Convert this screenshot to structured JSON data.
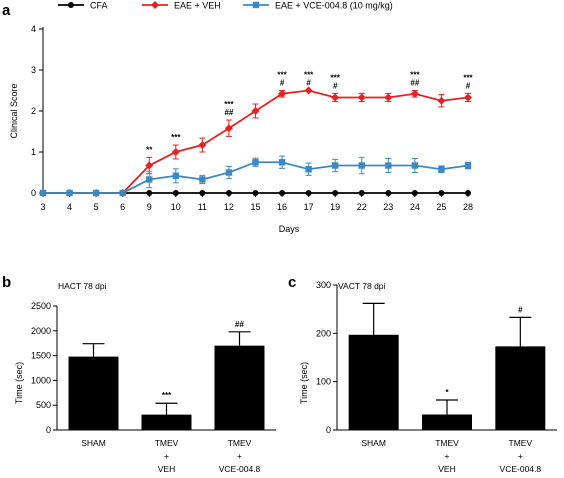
{
  "chart_data": [
    {
      "type": "line",
      "panel_label": "a",
      "xlabel": "Days",
      "ylabel": "Clinical Score",
      "ylim": [
        0,
        4
      ],
      "yticks": [
        0,
        1,
        2,
        3,
        4
      ],
      "categories": [
        "3",
        "4",
        "5",
        "6",
        "9",
        "10",
        "11",
        "12",
        "15",
        "16",
        "17",
        "19",
        "22",
        "23",
        "24",
        "25",
        "28"
      ],
      "legend_position": "top",
      "grid": false,
      "series": [
        {
          "name": "CFA",
          "color": "#000000",
          "marker": "circle",
          "values": [
            0,
            0,
            0,
            0,
            0,
            0,
            0,
            0,
            0,
            0,
            0,
            0,
            0,
            0,
            0,
            0,
            0
          ],
          "errors": [
            0,
            0,
            0,
            0,
            0,
            0,
            0,
            0,
            0,
            0,
            0,
            0,
            0,
            0,
            0,
            0,
            0
          ]
        },
        {
          "name": "EAE + VEH",
          "color": "#e8201f",
          "marker": "diamond",
          "values": [
            0,
            0,
            0,
            0,
            0.67,
            1.0,
            1.17,
            1.58,
            2.0,
            2.42,
            2.5,
            2.33,
            2.33,
            2.33,
            2.42,
            2.25,
            2.33
          ],
          "errors": [
            0,
            0,
            0,
            0,
            0.2,
            0.17,
            0.17,
            0.2,
            0.17,
            0.08,
            0,
            0.1,
            0.1,
            0.1,
            0.08,
            0.15,
            0.1
          ]
        },
        {
          "name": "EAE + VCE-004.8 (10 mg/kg)",
          "color": "#3b88c4",
          "marker": "square",
          "values": [
            0,
            0,
            0,
            0,
            0.33,
            0.42,
            0.33,
            0.5,
            0.75,
            0.75,
            0.58,
            0.67,
            0.67,
            0.67,
            0.67,
            0.58,
            0.67
          ],
          "errors": [
            0,
            0,
            0,
            0,
            0.2,
            0.17,
            0.1,
            0.15,
            0.1,
            0.15,
            0.15,
            0.15,
            0.2,
            0.17,
            0.17,
            0.08,
            0.08
          ]
        }
      ],
      "annotations": [
        {
          "x": "9",
          "lines": [
            "**"
          ]
        },
        {
          "x": "10",
          "lines": [
            "***"
          ]
        },
        {
          "x": "12",
          "lines": [
            "***",
            "##"
          ]
        },
        {
          "x": "16",
          "lines": [
            "***",
            "#"
          ]
        },
        {
          "x": "17",
          "lines": [
            "***",
            "#"
          ]
        },
        {
          "x": "19",
          "lines": [
            "***",
            "#"
          ]
        },
        {
          "x": "24",
          "lines": [
            "***",
            "##"
          ]
        },
        {
          "x": "28",
          "lines": [
            "***",
            "#"
          ]
        }
      ]
    },
    {
      "type": "bar",
      "panel_label": "b",
      "title": "HACT 78 dpi",
      "ylabel": "Time (sec)",
      "ylim": [
        0,
        2500
      ],
      "yticks": [
        0,
        500,
        1000,
        1500,
        2000,
        2500
      ],
      "categories": [
        [
          "SHAM"
        ],
        [
          "TMEV",
          "+",
          "VEH"
        ],
        [
          "TMEV",
          "+",
          "VCE-004.8"
        ]
      ],
      "values": [
        1480,
        310,
        1700
      ],
      "errors": [
        260,
        230,
        280
      ],
      "annotations": [
        "",
        "***",
        "##"
      ],
      "bar_color": "#000000"
    },
    {
      "type": "bar",
      "panel_label": "c",
      "title": "VACT 78 dpi",
      "ylabel": "Time (sec)",
      "ylim": [
        0,
        300
      ],
      "yticks": [
        0,
        100,
        200,
        300
      ],
      "categories": [
        [
          "SHAM"
        ],
        [
          "TMEV",
          "+",
          "VEH"
        ],
        [
          "TMEV",
          "+",
          "VCE-004.8"
        ]
      ],
      "values": [
        197,
        32,
        173
      ],
      "errors": [
        65,
        30,
        60
      ],
      "annotations": [
        "",
        "*",
        "#"
      ],
      "bar_color": "#000000"
    }
  ]
}
